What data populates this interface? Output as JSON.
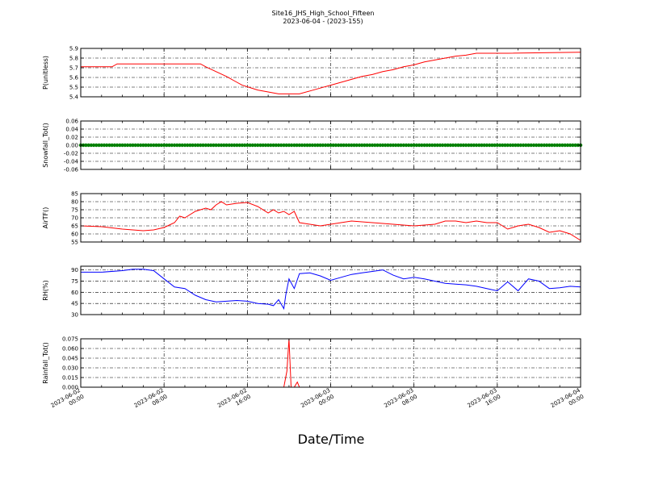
{
  "title": "Site16_JHS_High_School_Fifteen",
  "subtitle": "2023-06-04 - (2023-155)",
  "xlabel": "Date/Time",
  "x_ticks": [
    {
      "line1": "2023-06-02",
      "line2": "00:00"
    },
    {
      "line1": "2023-06-02",
      "line2": "08:00"
    },
    {
      "line1": "2023-06-02",
      "line2": "16:00"
    },
    {
      "line1": "2023-06-03",
      "line2": "00:00"
    },
    {
      "line1": "2023-06-03",
      "line2": "08:00"
    },
    {
      "line1": "2023-06-03",
      "line2": "16:00"
    },
    {
      "line1": "2023-06-04",
      "line2": "00:00"
    }
  ],
  "x_range": [
    "2023-06-02 00:00",
    "2023-06-04 00:00"
  ],
  "chart_data": [
    {
      "type": "line",
      "ylabel": "P(unitless)",
      "ylim": [
        5.4,
        5.9
      ],
      "yticks": [
        "5.4",
        "5.5",
        "5.6",
        "5.7",
        "5.8",
        "5.9"
      ],
      "grid": true,
      "color": "#ff0000",
      "hours": [
        0,
        3,
        3.5,
        11.5,
        12,
        13,
        14,
        15,
        15.5,
        17,
        18,
        19,
        20,
        21,
        22,
        23,
        24,
        25,
        26,
        27,
        28,
        29,
        30,
        31,
        32,
        33,
        34,
        35,
        36,
        37,
        38,
        39,
        40,
        41,
        48
      ],
      "values": [
        5.71,
        5.71,
        5.74,
        5.74,
        5.71,
        5.66,
        5.61,
        5.55,
        5.52,
        5.47,
        5.45,
        5.43,
        5.43,
        5.43,
        5.46,
        5.49,
        5.52,
        5.55,
        5.58,
        5.61,
        5.63,
        5.66,
        5.68,
        5.71,
        5.73,
        5.76,
        5.78,
        5.8,
        5.82,
        5.83,
        5.85,
        5.85,
        5.85,
        5.85,
        5.86
      ]
    },
    {
      "type": "line",
      "ylabel": "Snowfall_Tot()",
      "ylim": [
        -0.06,
        0.06
      ],
      "yticks": [
        "-0.06",
        "-0.04",
        "-0.02",
        "0.00",
        "0.02",
        "0.04",
        "0.06"
      ],
      "grid": true,
      "color": "#008000",
      "markers": true,
      "hours": [
        0,
        48
      ],
      "values": [
        0,
        0
      ]
    },
    {
      "type": "line",
      "ylabel": "AirTF()",
      "ylim": [
        55,
        85
      ],
      "yticks": [
        "55",
        "60",
        "65",
        "70",
        "75",
        "80",
        "85"
      ],
      "grid": true,
      "color": "#ff0000",
      "hours": [
        0,
        2,
        4,
        6,
        7,
        8,
        9,
        9.5,
        10,
        11,
        12,
        12.5,
        13,
        13.5,
        14,
        15,
        16,
        17,
        18,
        18.5,
        19,
        19.5,
        20,
        20.5,
        21,
        22,
        23,
        24,
        25,
        26,
        28,
        30,
        32,
        34,
        35,
        36,
        37,
        38,
        39,
        40,
        41,
        42,
        43,
        44,
        45,
        46,
        47,
        48
      ],
      "values": [
        65,
        64.5,
        63,
        62,
        62.5,
        64,
        67,
        71,
        70,
        74,
        76,
        75,
        78,
        80,
        78,
        79,
        79.5,
        77,
        73,
        75,
        73,
        74,
        72,
        74,
        67,
        66,
        65,
        66,
        67,
        68,
        67,
        66,
        65,
        66,
        68,
        68,
        67,
        68,
        67,
        67,
        63,
        65,
        66,
        64,
        61,
        62,
        60,
        56
      ]
    },
    {
      "type": "line",
      "ylabel": "RH(%)",
      "ylim": [
        30,
        95
      ],
      "yticks": [
        "30",
        "45",
        "60",
        "75",
        "90"
      ],
      "grid": true,
      "color": "#0000ff",
      "hours": [
        0,
        2,
        4,
        5,
        6,
        7,
        8,
        9,
        10,
        11,
        12,
        13,
        14,
        15,
        16,
        17,
        18,
        18.5,
        19,
        19.5,
        19.7,
        20,
        20.5,
        21,
        22,
        23,
        24,
        25,
        26,
        27,
        28,
        29,
        30,
        31,
        32,
        33,
        34,
        35,
        36,
        37,
        38,
        39,
        40,
        41,
        42,
        43,
        44,
        45,
        46,
        47,
        48
      ],
      "values": [
        87,
        87,
        89,
        91,
        91,
        89,
        78,
        67,
        65,
        56,
        50,
        47,
        48,
        49,
        48,
        45,
        44,
        42,
        50,
        38,
        57,
        78,
        65,
        85,
        86,
        82,
        76,
        80,
        84,
        86,
        88,
        90,
        83,
        78,
        80,
        78,
        75,
        72,
        71,
        70,
        68,
        65,
        62,
        74,
        62,
        78,
        75,
        65,
        66,
        68,
        67
      ]
    },
    {
      "type": "line",
      "ylabel": "Rainfall_Tot()",
      "ylim": [
        0,
        0.075
      ],
      "yticks": [
        "0.000",
        "0.015",
        "0.030",
        "0.045",
        "0.060",
        "0.075"
      ],
      "grid": true,
      "color": "#ff0000",
      "hours": [
        0,
        19.5,
        19.8,
        20.0,
        20.2,
        20.5,
        20.8,
        21.0,
        48
      ],
      "values": [
        0,
        0,
        0.025,
        0.075,
        0,
        0,
        0.008,
        0,
        0
      ]
    }
  ]
}
